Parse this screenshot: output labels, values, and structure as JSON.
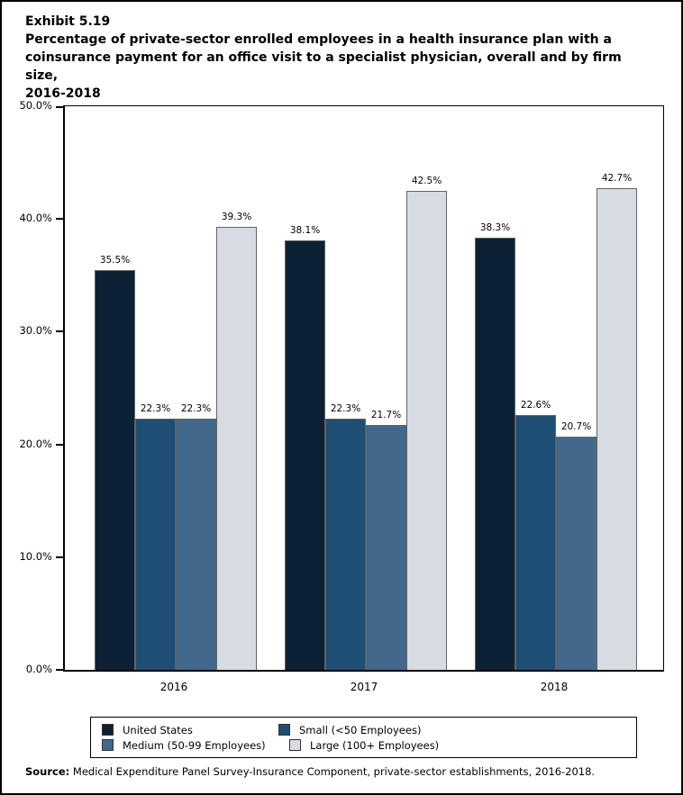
{
  "page": {
    "exhibit_label": "Exhibit 5.19",
    "title_lines": [
      "Percentage of private-sector enrolled employees in a health insurance plan with a",
      "coinsurance payment for an office visit to a specialist physician, overall and by firm size,",
      "2016-2018"
    ],
    "source_label": "Source:",
    "source_text": " Medical Expenditure Panel Survey-Insurance Component, private-sector establishments, 2016-2018."
  },
  "chart_data": {
    "type": "bar",
    "title": "Percentage of private-sector enrolled employees in a health insurance plan with a coinsurance payment for an office visit to a specialist physician, overall and by firm size, 2016-2018",
    "categories": [
      "2016",
      "2017",
      "2018"
    ],
    "series": [
      {
        "name": "United States",
        "color": "#0c2133",
        "values": [
          35.5,
          38.1,
          38.3
        ]
      },
      {
        "name": "Small (<50 Employees)",
        "color": "#1f4e74",
        "values": [
          22.3,
          22.3,
          22.6
        ]
      },
      {
        "name": "Medium (50-99 Employees)",
        "color": "#41698b",
        "values": [
          22.3,
          21.7,
          20.7
        ]
      },
      {
        "name": "Large (100+ Employees)",
        "color": "#d7dce2",
        "values": [
          39.3,
          42.5,
          42.7
        ]
      }
    ],
    "xlabel": "",
    "ylabel": "",
    "ylim": [
      0,
      50
    ],
    "ytick_step": 10,
    "ytick_labels": [
      "0.0%",
      "10.0%",
      "20.0%",
      "30.0%",
      "40.0%",
      "50.0%"
    ],
    "value_label_suffix": "%",
    "grid": false,
    "legend_position": "bottom",
    "bar_border_color": "#5f6368"
  }
}
